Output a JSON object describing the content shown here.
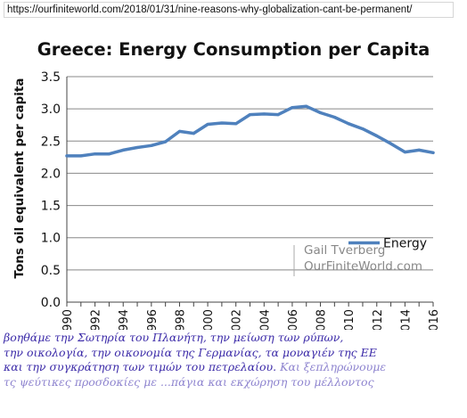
{
  "url": "https://ourfiniteworld.com/2018/01/31/nine-reasons-why-globalization-cant-be-permanent/",
  "chart_data": {
    "type": "line",
    "title": "Greece: Energy Consumption per Capita",
    "ylabel": "Tons oil equivalent per capita",
    "xlabel": "",
    "xlim": [
      1990,
      2016
    ],
    "ylim": [
      0.0,
      3.5
    ],
    "yticks": [
      "0.0",
      "0.5",
      "1.0",
      "1.5",
      "2.0",
      "2.5",
      "3.0",
      "3.5"
    ],
    "xticks": [
      "1990",
      "1992",
      "1994",
      "1996",
      "1998",
      "2000",
      "2002",
      "2004",
      "2006",
      "2008",
      "2010",
      "2012",
      "2014",
      "2016"
    ],
    "grid": "horizontal",
    "legend_position": "right",
    "series": [
      {
        "name": "Energy",
        "color": "#4f81bd",
        "x": [
          1990,
          1991,
          1992,
          1993,
          1994,
          1995,
          1996,
          1997,
          1998,
          1999,
          2000,
          2001,
          2002,
          2003,
          2004,
          2005,
          2006,
          2007,
          2008,
          2009,
          2010,
          2011,
          2012,
          2013,
          2014,
          2015,
          2016
        ],
        "values": [
          2.27,
          2.27,
          2.3,
          2.3,
          2.36,
          2.4,
          2.43,
          2.49,
          2.65,
          2.62,
          2.76,
          2.78,
          2.77,
          2.91,
          2.92,
          2.91,
          3.02,
          3.04,
          2.94,
          2.87,
          2.77,
          2.69,
          2.58,
          2.46,
          2.33,
          2.36,
          2.32
        ]
      }
    ],
    "credit_lines": [
      "Gail Tverberg",
      "OurFiniteWorld.com"
    ]
  },
  "caption": {
    "lines": [
      {
        "text": "βοηθάμε την Σωτηρία του Πλανήτη, την μείωση των ρύπων,",
        "extra": ""
      },
      {
        "text": "την οικολογία, την οικονομία της Γερμανίας, τα μοναγιέν της ΕΕ",
        "extra": ""
      },
      {
        "text": "και την συγκράτηση των τιμών του πετρελαίου.",
        "extra": " Και ξεπληρώνουμε"
      },
      {
        "text": "",
        "extra": "τς ψεύτικες προσδοκίες με ...πάγια και εκχώρηση του μέλλοντος"
      }
    ]
  }
}
